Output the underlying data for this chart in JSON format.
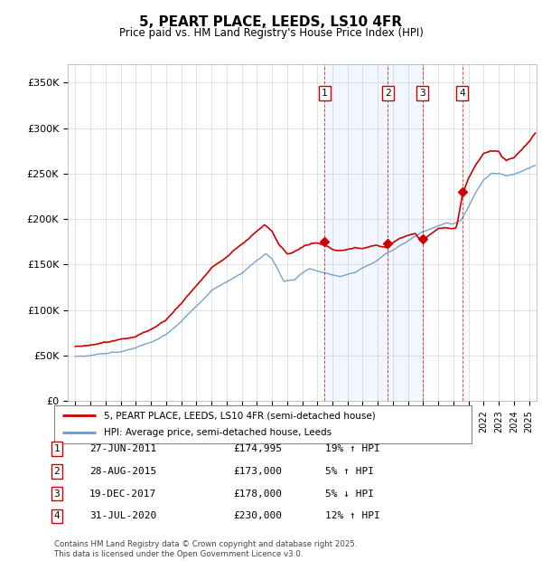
{
  "title": "5, PEART PLACE, LEEDS, LS10 4FR",
  "subtitle": "Price paid vs. HM Land Registry's House Price Index (HPI)",
  "ylabel_ticks": [
    "£0",
    "£50K",
    "£100K",
    "£150K",
    "£200K",
    "£250K",
    "£300K",
    "£350K"
  ],
  "ytick_values": [
    0,
    50000,
    100000,
    150000,
    200000,
    250000,
    300000,
    350000
  ],
  "ylim": [
    0,
    370000
  ],
  "xlim_start": 1994.5,
  "xlim_end": 2025.5,
  "sale_annotations": [
    {
      "num": "1",
      "date": "27-JUN-2011",
      "price": "£174,995",
      "pct": "19%",
      "dir": "↑",
      "rel": "HPI"
    },
    {
      "num": "2",
      "date": "28-AUG-2015",
      "price": "£173,000",
      "pct": "5%",
      "dir": "↑",
      "rel": "HPI"
    },
    {
      "num": "3",
      "date": "19-DEC-2017",
      "price": "£178,000",
      "pct": "5%",
      "dir": "↓",
      "rel": "HPI"
    },
    {
      "num": "4",
      "date": "31-JUL-2020",
      "price": "£230,000",
      "pct": "12%",
      "dir": "↑",
      "rel": "HPI"
    }
  ],
  "legend_line1": "5, PEART PLACE, LEEDS, LS10 4FR (semi-detached house)",
  "legend_line2": "HPI: Average price, semi-detached house, Leeds",
  "footer": "Contains HM Land Registry data © Crown copyright and database right 2025.\nThis data is licensed under the Open Government Licence v3.0.",
  "line_color_red": "#cc0000",
  "line_color_blue": "#6699cc",
  "shade_color": "#ddeeff",
  "plot_bg": "#ffffff"
}
